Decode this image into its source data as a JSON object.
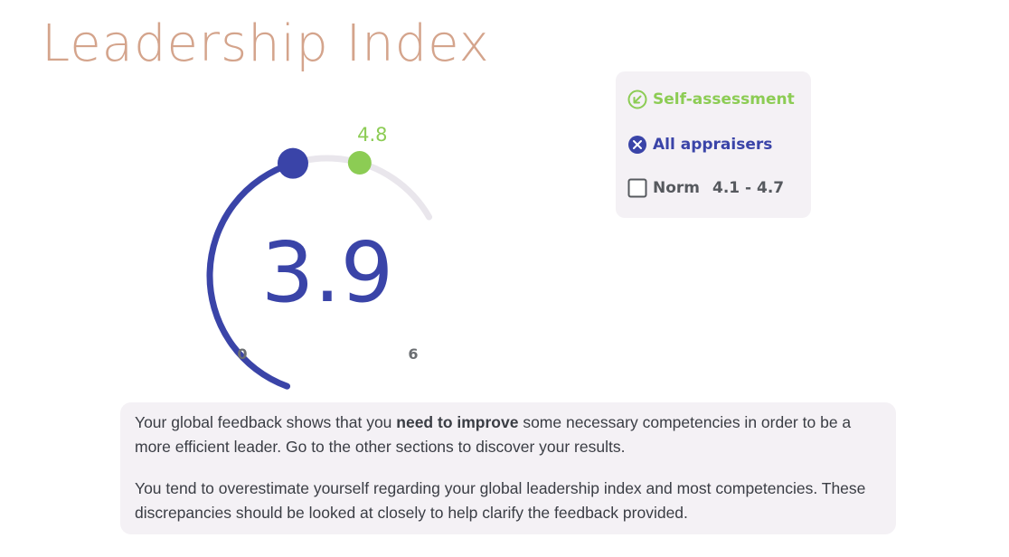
{
  "page": {
    "title": "Leadership Index"
  },
  "gauge": {
    "min": 0,
    "max": 6,
    "min_label": "0",
    "max_label": "6",
    "score": 3.9,
    "score_label": "3.9",
    "self_assessment": 4.8,
    "self_assessment_label": "4.8",
    "colors": {
      "score": "#3a44a8",
      "self": "#8ccc54",
      "track": "#e9e6ec"
    }
  },
  "legend": {
    "self_assessment": {
      "label": "Self-assessment",
      "icon": "self-assessment-icon"
    },
    "all_appraisers": {
      "label": "All appraisers",
      "icon": "all-appraisers-icon"
    },
    "norm": {
      "label": "Norm",
      "range": "4.1 - 4.7",
      "icon": "checkbox-icon"
    }
  },
  "feedback": {
    "p1_before": "Your global feedback shows that you ",
    "p1_strong": "need to improve",
    "p1_after": " some necessary competencies in order to be a more efficient leader. Go to the other sections to discover your results.",
    "p2": "You tend to overestimate yourself regarding your global leadership index and most competencies. These discrepancies should be looked at closely to help clarify the feedback provided."
  }
}
